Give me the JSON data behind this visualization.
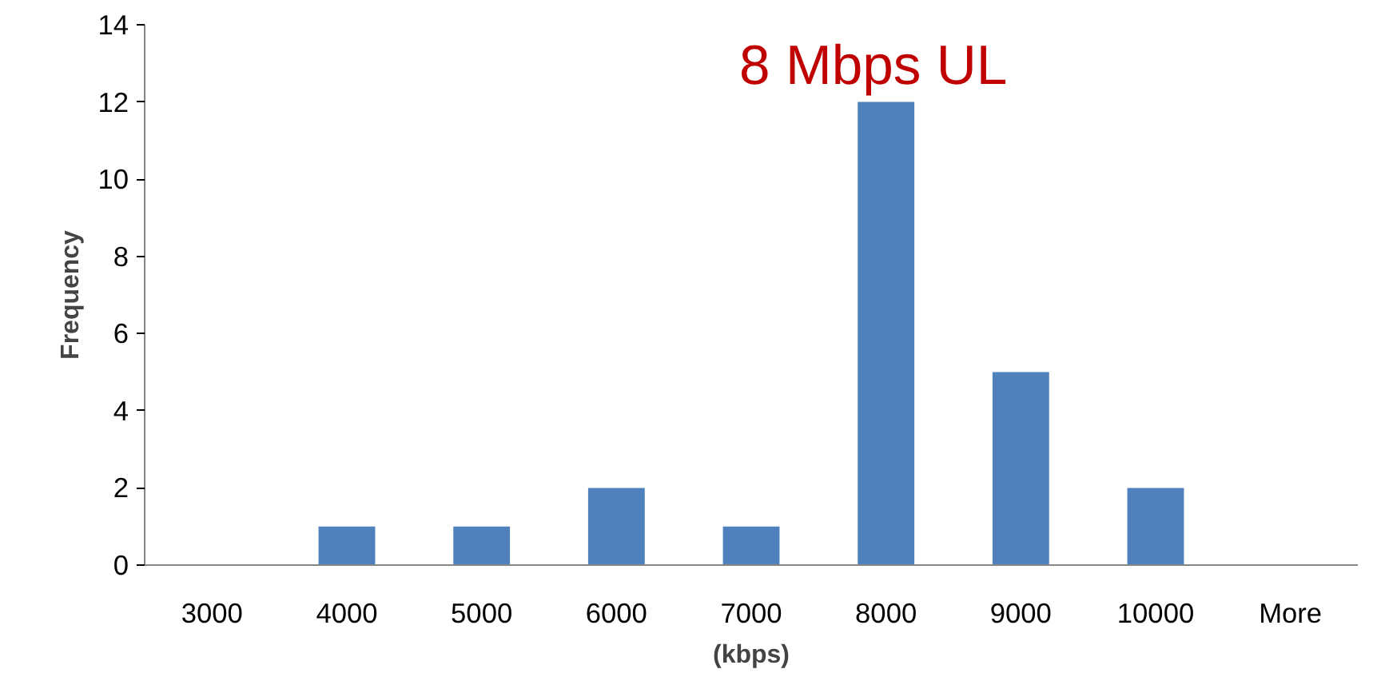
{
  "chart_data": {
    "type": "bar",
    "title": "8 Mbps UL",
    "xlabel": "(kbps)",
    "ylabel": "Frequency",
    "categories": [
      "3000",
      "4000",
      "5000",
      "6000",
      "7000",
      "8000",
      "9000",
      "10000",
      "More"
    ],
    "values": [
      0,
      1,
      1,
      2,
      1,
      12,
      5,
      2,
      0
    ],
    "color": "#4f81bd",
    "ylim": [
      0,
      14
    ],
    "yticks": [
      0,
      2,
      4,
      6,
      8,
      10,
      12,
      14
    ],
    "grid": false
  }
}
